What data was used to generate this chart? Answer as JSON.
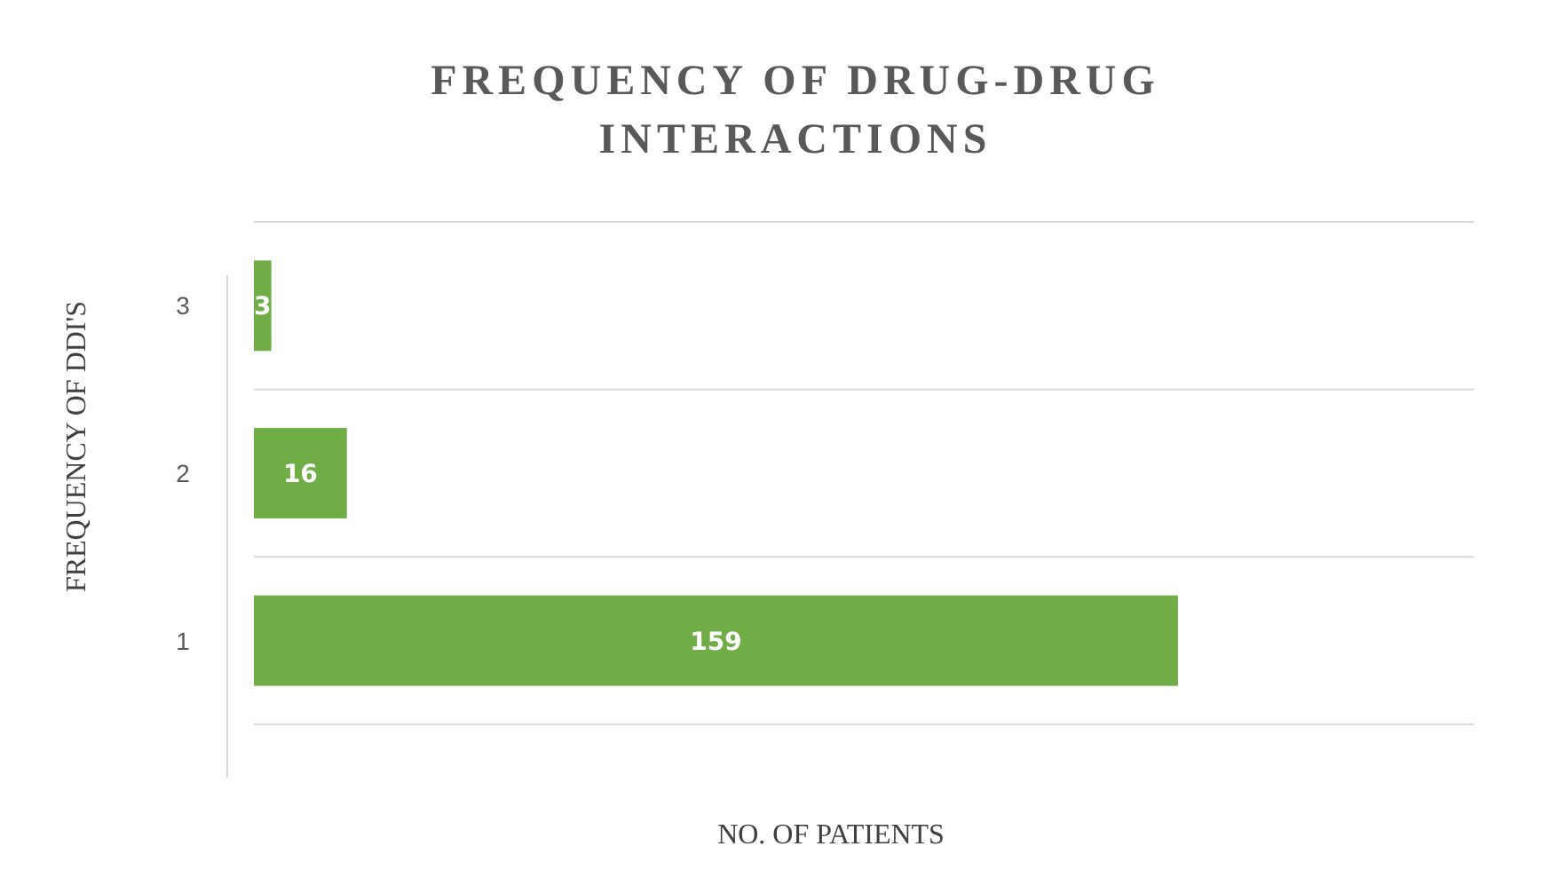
{
  "chart_data": {
    "type": "bar",
    "orientation": "horizontal",
    "title": "FREQUENCY OF DRUG-DRUG INTERACTIONS",
    "xlabel": "NO. OF PATIENTS",
    "ylabel": "FREQUENCY OF DDI'S",
    "categories": [
      "3",
      "2",
      "1"
    ],
    "values": [
      3,
      16,
      159
    ],
    "color": "#70ad47",
    "data_labels": true,
    "grid": "y"
  }
}
